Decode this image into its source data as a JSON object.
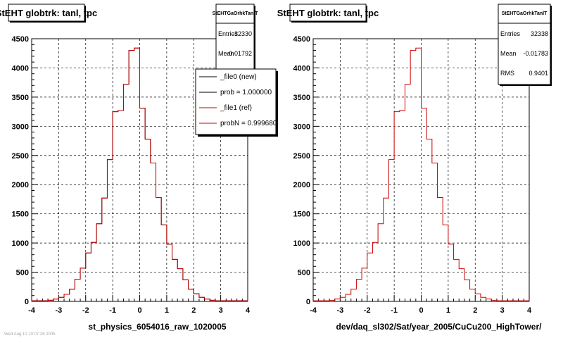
{
  "chart_data": [
    {
      "type": "line",
      "title": "StEHT globtrk: tanl, tpc",
      "xlabel": "st_physics_6054016_raw_1020005",
      "xlim": [
        -4,
        4
      ],
      "ylim": [
        0,
        4500
      ],
      "xticks": [
        -4,
        -3,
        -2,
        -1,
        0,
        1,
        2,
        3,
        4
      ],
      "yticks": [
        0,
        500,
        1000,
        1500,
        2000,
        2500,
        3000,
        3500,
        4000,
        4500
      ],
      "grid": true,
      "legend_position": "top-right",
      "bin_width": 0.2,
      "x": [
        -3.9,
        -3.7,
        -3.5,
        -3.3,
        -3.1,
        -2.9,
        -2.7,
        -2.5,
        -2.3,
        -2.1,
        -1.9,
        -1.7,
        -1.5,
        -1.3,
        -1.1,
        -0.9,
        -0.7,
        -0.5,
        -0.3,
        -0.1,
        0.1,
        0.3,
        0.5,
        0.7,
        0.9,
        1.1,
        1.3,
        1.5,
        1.7,
        1.9,
        2.1,
        2.3,
        2.5,
        2.7,
        2.9,
        3.1,
        3.3,
        3.5,
        3.7,
        3.9
      ],
      "series": [
        {
          "color": "#000000",
          "values": [
            10,
            10,
            10,
            20,
            40,
            70,
            120,
            210,
            380,
            570,
            830,
            1010,
            1330,
            1770,
            2430,
            3250,
            3270,
            3720,
            4300,
            4340,
            3310,
            2780,
            2370,
            1780,
            1310,
            980,
            720,
            560,
            370,
            210,
            130,
            70,
            40,
            20,
            10,
            10,
            10,
            10,
            10,
            10
          ]
        },
        {
          "color": "#cc0000",
          "values": [
            10,
            10,
            10,
            20,
            40,
            70,
            120,
            210,
            380,
            570,
            830,
            1010,
            1330,
            1770,
            2430,
            3250,
            3270,
            3720,
            4300,
            4340,
            3310,
            2780,
            2370,
            1780,
            1310,
            980,
            720,
            560,
            370,
            210,
            130,
            70,
            40,
            20,
            10,
            10,
            10,
            10,
            10,
            10
          ]
        }
      ],
      "stats": {
        "header": "StEHTGaOrhkTanlT",
        "rows": [
          {
            "label": "Entries",
            "value": "32330"
          },
          {
            "label": "Mean",
            "value": "-0.01792"
          }
        ]
      },
      "legend": [
        {
          "label": "_file0 (new)",
          "color": "#000000"
        },
        {
          "label": "prob = 1.000000",
          "color": "#000000"
        },
        {
          "label": "_file1 (ref)",
          "color": "#cc0000"
        },
        {
          "label": "probN = 0.999680",
          "color": "#cc0000"
        }
      ]
    },
    {
      "type": "line",
      "title": "StEHT globtrk: tanl, tpc",
      "xlabel": "dev/daq_sl302/Sat/year_2005/CuCu200_HighTower/",
      "xlim": [
        -4,
        4
      ],
      "ylim": [
        0,
        4500
      ],
      "xticks": [
        -4,
        -3,
        -2,
        -1,
        0,
        1,
        2,
        3,
        4
      ],
      "yticks": [
        0,
        500,
        1000,
        1500,
        2000,
        2500,
        3000,
        3500,
        4000,
        4500
      ],
      "grid": true,
      "bin_width": 0.2,
      "x": [
        -3.9,
        -3.7,
        -3.5,
        -3.3,
        -3.1,
        -2.9,
        -2.7,
        -2.5,
        -2.3,
        -2.1,
        -1.9,
        -1.7,
        -1.5,
        -1.3,
        -1.1,
        -0.9,
        -0.7,
        -0.5,
        -0.3,
        -0.1,
        0.1,
        0.3,
        0.5,
        0.7,
        0.9,
        1.1,
        1.3,
        1.5,
        1.7,
        1.9,
        2.1,
        2.3,
        2.5,
        2.7,
        2.9,
        3.1,
        3.3,
        3.5,
        3.7,
        3.9
      ],
      "series": [
        {
          "color": "#cc0000",
          "values": [
            10,
            10,
            10,
            20,
            40,
            70,
            120,
            210,
            380,
            570,
            830,
            1010,
            1330,
            1770,
            2430,
            3250,
            3270,
            3720,
            4300,
            4340,
            3310,
            2780,
            2370,
            1780,
            1310,
            980,
            720,
            560,
            370,
            210,
            130,
            70,
            40,
            20,
            10,
            10,
            10,
            10,
            10,
            10
          ]
        }
      ],
      "stats": {
        "header": "StEHTGaOrhkTanlT",
        "rows": [
          {
            "label": "Entries",
            "value": "32338"
          },
          {
            "label": "Mean",
            "value": "-0.01783"
          },
          {
            "label": "RMS",
            "value": "0.9401"
          }
        ]
      }
    }
  ],
  "footer_text": "Wed Aug 10 10:07:26 2005"
}
